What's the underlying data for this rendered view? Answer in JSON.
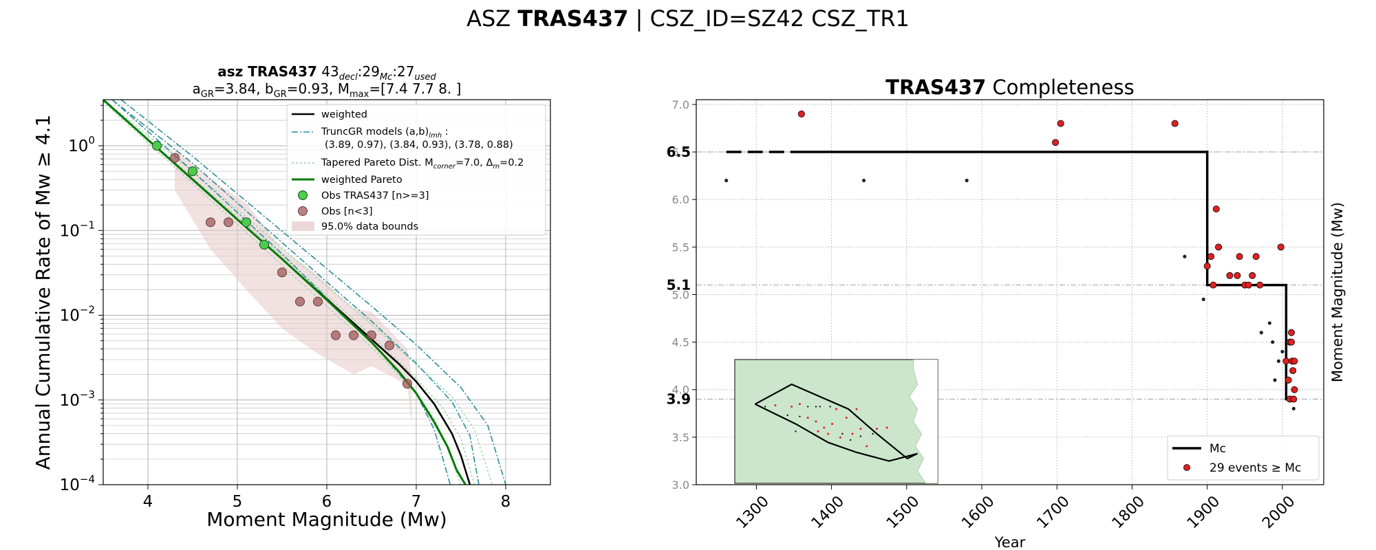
{
  "suptitle": {
    "prefix": "ASZ ",
    "name": "TRAS437",
    "suffix": " | CSZ_ID=SZ42 CSZ_TR1"
  },
  "colors": {
    "weighted": "#000000",
    "truncgr": "#2a8d96",
    "tapered": "#8fd3a8",
    "weighted_pareto": "#007a00",
    "obs_used": "#4ccc4c",
    "obs_small": "#a05a5a",
    "bounds": "#e6c8c8",
    "events": "#e02020",
    "inset_land": "#cce6cc"
  },
  "chart_data": [
    {
      "type": "line",
      "title_line1": {
        "bold": "asz TRAS437",
        "n_decl": "43",
        "sub_decl": "decl",
        "n_mc": ":29",
        "sub_mc": "Mc",
        "n_used": ":27",
        "sub_used": "used"
      },
      "title_line2": {
        "a_label": "a",
        "a_sub": "GR",
        "a_val": "=3.84,  b",
        "b_sub": "GR",
        "b_val": "=0.93, M",
        "m_sub": "max",
        "m_val": "=[7.4 7.7 8. ]"
      },
      "xlabel": "Moment Magnitude (Mw)",
      "ylabel": "Annual Cumulative Rate of Mw  ≥  4.1",
      "xlim": [
        3.5,
        8.5
      ],
      "ylim": [
        0.0001,
        3.5
      ],
      "yscale": "log",
      "xticks": [
        4,
        5,
        6,
        7,
        8
      ],
      "xtick_labels": [
        "4",
        "5",
        "6",
        "7",
        "8"
      ],
      "ytick_labels": [
        {
          "base": "10",
          "exp": "0"
        },
        {
          "base": "10",
          "exp": "−1"
        },
        {
          "base": "10",
          "exp": "−2"
        },
        {
          "base": "10",
          "exp": "−3"
        },
        {
          "base": "10",
          "exp": "−4"
        }
      ],
      "grid": true,
      "legend_position": "top-right",
      "legend": {
        "weighted": "weighted",
        "truncgr_line1": "TruncGR models (a,b)",
        "truncgr_sub": "lmh",
        "truncgr_colon": " :",
        "truncgr_line2": "(3.89, 0.97), (3.84, 0.93), (3.78, 0.88)",
        "tapered_text": "Tapered Pareto Dist. M",
        "tapered_sub": "corner",
        "tapered_mid": "=7.0, Δ",
        "tapered_sub2": "m",
        "tapered_end": "=0.2",
        "weighted_pareto": "weighted Pareto",
        "obs_used": "Obs TRAS437 [n>=3]",
        "obs_small": "Obs [n<3]",
        "bounds": "95.0% data bounds"
      },
      "series": [
        {
          "name": "weighted",
          "x": [
            3.5,
            4.0,
            4.5,
            5.0,
            5.5,
            6.0,
            6.5,
            6.8,
            7.0,
            7.2,
            7.3,
            7.4,
            7.5,
            7.6
          ],
          "y": [
            3.5,
            1.18,
            0.4,
            0.135,
            0.046,
            0.0155,
            0.0052,
            0.0027,
            0.00165,
            0.0009,
            0.0006,
            0.0004,
            0.00022,
            0.0001
          ]
        },
        {
          "name": "weighted Pareto",
          "x": [
            3.5,
            4.0,
            4.5,
            5.0,
            5.5,
            6.0,
            6.5,
            6.8,
            7.0,
            7.2,
            7.35,
            7.45,
            7.55
          ],
          "y": [
            3.5,
            1.18,
            0.4,
            0.135,
            0.046,
            0.0152,
            0.0048,
            0.0022,
            0.0012,
            0.00055,
            0.00028,
            0.00015,
            0.0001
          ]
        },
        {
          "name": "TruncGR low",
          "x": [
            3.6,
            4.5,
            5.5,
            6.5,
            7.0,
            7.2,
            7.3,
            7.38
          ],
          "y": [
            3.5,
            0.5,
            0.053,
            0.0048,
            0.0012,
            0.00045,
            0.0002,
            0.0001
          ]
        },
        {
          "name": "TruncGR mid",
          "x": [
            3.6,
            4.5,
            5.5,
            6.5,
            7.0,
            7.4,
            7.6,
            7.7
          ],
          "y": [
            3.5,
            0.62,
            0.072,
            0.0085,
            0.0027,
            0.00095,
            0.00038,
            0.0001
          ]
        },
        {
          "name": "TruncGR high",
          "x": [
            3.7,
            4.5,
            5.5,
            6.5,
            7.0,
            7.5,
            7.8,
            8.0
          ],
          "y": [
            3.5,
            0.75,
            0.098,
            0.0128,
            0.0045,
            0.0014,
            0.0005,
            0.0001
          ]
        },
        {
          "name": "Tapered 1",
          "x": [
            3.5,
            4.5,
            5.5,
            6.5,
            7.0,
            7.2,
            7.35,
            7.5
          ],
          "y": [
            3.3,
            0.36,
            0.039,
            0.0042,
            0.0012,
            0.0006,
            0.00028,
            0.0001
          ]
        },
        {
          "name": "Tapered 2",
          "x": [
            3.5,
            4.5,
            5.5,
            6.5,
            7.0,
            7.3,
            7.5,
            7.65
          ],
          "y": [
            3.5,
            0.42,
            0.05,
            0.0058,
            0.0018,
            0.0008,
            0.00035,
            0.0001
          ]
        },
        {
          "name": "Tapered 3",
          "x": [
            3.5,
            4.5,
            5.5,
            6.5,
            7.0,
            7.4,
            7.65,
            7.85
          ],
          "y": [
            3.5,
            0.5,
            0.062,
            0.0078,
            0.0026,
            0.0011,
            0.00045,
            0.0001
          ]
        }
      ],
      "bounds": {
        "x_upper": [
          4.3,
          4.7,
          5.1,
          5.5,
          5.9,
          6.3,
          6.5,
          6.9,
          6.95
        ],
        "y_upper": [
          0.9,
          0.4,
          0.21,
          0.06,
          0.03,
          0.012,
          0.011,
          0.004,
          0.002
        ],
        "x_lower": [
          6.95,
          6.9,
          6.5,
          6.3,
          5.9,
          5.5,
          5.1,
          4.7,
          4.3
        ],
        "y_lower": [
          0.0005,
          0.0015,
          0.0025,
          0.002,
          0.0035,
          0.007,
          0.02,
          0.06,
          0.3
        ]
      },
      "obs_used": {
        "x": [
          4.1,
          4.5,
          5.1,
          5.3
        ],
        "y": [
          1.0,
          0.5,
          0.125,
          0.068
        ]
      },
      "obs_small": {
        "x": [
          4.3,
          4.7,
          4.9,
          5.5,
          5.7,
          5.9,
          6.1,
          6.3,
          6.5,
          6.7,
          6.9
        ],
        "y": [
          0.72,
          0.125,
          0.125,
          0.032,
          0.0145,
          0.0145,
          0.0058,
          0.0058,
          0.0058,
          0.0044,
          0.00155
        ]
      }
    },
    {
      "type": "scatter",
      "title_bold": "TRAS437",
      "title_rest": " Completeness",
      "xlabel": "Year",
      "ylabel": "Moment Magnitude (Mw)",
      "xlim": [
        1220,
        2055
      ],
      "ylim": [
        3.0,
        7.05
      ],
      "xticks": [
        1300,
        1400,
        1500,
        1600,
        1700,
        1800,
        1900,
        2000
      ],
      "xtick_labels": [
        "1300",
        "1400",
        "1500",
        "1600",
        "1700",
        "1800",
        "1900",
        "2000"
      ],
      "yticks": [
        3.0,
        3.5,
        4.0,
        4.5,
        5.0,
        5.5,
        6.0,
        6.5,
        7.0
      ],
      "ytick_labels": [
        "3.0",
        "3.5",
        "4.0",
        "4.5",
        "5.0",
        "5.5",
        "6.0",
        "6.5",
        "7.0"
      ],
      "mc_labels": [
        {
          "value": 6.5,
          "label": "6.5"
        },
        {
          "value": 5.1,
          "label": "5.1"
        },
        {
          "value": 3.9,
          "label": "3.9"
        }
      ],
      "grid": true,
      "legend_position": "lower-right",
      "legend": {
        "mc": "Mc",
        "events": "29 events  ≥  Mc"
      },
      "mc_step": {
        "dashed": {
          "x": [
            1260,
            1360
          ],
          "y": [
            6.5,
            6.5
          ]
        },
        "solid": {
          "x": [
            1360,
            1900,
            1900,
            2005,
            2005,
            2012
          ],
          "y": [
            6.5,
            6.5,
            5.1,
            5.1,
            3.9,
            3.9
          ]
        }
      },
      "events_above": {
        "x": [
          1360,
          1698,
          1705,
          1857,
          1900,
          1905,
          1908,
          1915,
          1912,
          1930,
          1940,
          1943,
          1950,
          1955,
          1960,
          1965,
          1970,
          1998,
          2005,
          2008,
          2010,
          2012,
          2014,
          2016,
          2010,
          2013,
          2016,
          2012,
          2015
        ],
        "y": [
          6.9,
          6.6,
          6.8,
          6.8,
          5.3,
          5.4,
          5.1,
          5.5,
          5.9,
          5.2,
          5.2,
          5.4,
          5.1,
          5.1,
          5.2,
          5.4,
          5.1,
          5.5,
          4.3,
          4.1,
          4.5,
          4.6,
          4.2,
          4.0,
          3.9,
          4.3,
          4.3,
          4.5,
          3.9
        ]
      },
      "events_below": {
        "x": [
          1260,
          1443,
          1580,
          1870,
          1895,
          1972,
          1983,
          1987,
          1990,
          1995,
          2000,
          2015
        ],
        "y": [
          6.2,
          6.2,
          6.2,
          5.4,
          4.95,
          4.6,
          4.7,
          4.5,
          4.1,
          4.3,
          4.4,
          3.8
        ]
      },
      "inset": {
        "polygon": [
          [
            0.1,
            0.36
          ],
          [
            0.28,
            0.2
          ],
          [
            0.56,
            0.4
          ],
          [
            0.7,
            0.6
          ],
          [
            0.85,
            0.8
          ],
          [
            0.9,
            0.76
          ],
          [
            0.76,
            0.82
          ],
          [
            0.6,
            0.75
          ],
          [
            0.46,
            0.67
          ],
          [
            0.3,
            0.52
          ],
          [
            0.2,
            0.44
          ],
          [
            0.1,
            0.36
          ]
        ],
        "red_points": [
          [
            0.2,
            0.37
          ],
          [
            0.28,
            0.38
          ],
          [
            0.32,
            0.36
          ],
          [
            0.36,
            0.47
          ],
          [
            0.4,
            0.5
          ],
          [
            0.44,
            0.55
          ],
          [
            0.48,
            0.52
          ],
          [
            0.55,
            0.47
          ],
          [
            0.58,
            0.6
          ],
          [
            0.62,
            0.56
          ],
          [
            0.65,
            0.7
          ],
          [
            0.52,
            0.63
          ],
          [
            0.46,
            0.6
          ],
          [
            0.41,
            0.58
          ],
          [
            0.5,
            0.4
          ],
          [
            0.6,
            0.4
          ],
          [
            0.7,
            0.56
          ],
          [
            0.75,
            0.55
          ]
        ],
        "black_points": [
          [
            0.15,
            0.38
          ],
          [
            0.26,
            0.45
          ],
          [
            0.32,
            0.46
          ],
          [
            0.3,
            0.58
          ],
          [
            0.36,
            0.38
          ],
          [
            0.4,
            0.38
          ],
          [
            0.42,
            0.38
          ],
          [
            0.47,
            0.38
          ],
          [
            0.53,
            0.6
          ],
          [
            0.57,
            0.65
          ],
          [
            0.62,
            0.62
          ],
          [
            0.68,
            0.6
          ]
        ],
        "coast": [
          [
            0.88,
            0.0
          ],
          [
            0.88,
            0.08
          ],
          [
            0.9,
            0.2
          ],
          [
            0.86,
            0.3
          ],
          [
            0.9,
            0.4
          ],
          [
            0.88,
            0.5
          ],
          [
            0.92,
            0.6
          ],
          [
            0.89,
            0.7
          ],
          [
            0.93,
            0.8
          ],
          [
            0.9,
            0.9
          ],
          [
            0.94,
            1.0
          ],
          [
            1.0,
            1.0
          ],
          [
            1.0,
            0.0
          ]
        ]
      }
    }
  ]
}
